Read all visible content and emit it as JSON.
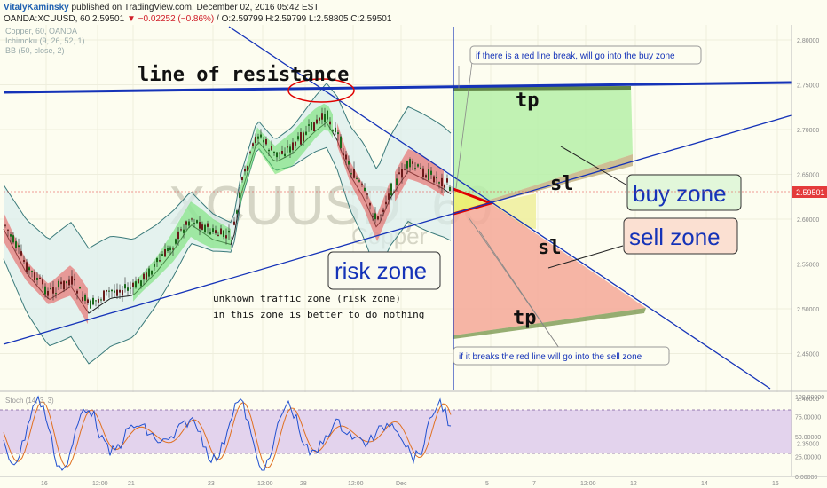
{
  "header": {
    "author": "VitalyKaminsky",
    "published": "published on TradingView.com, December 02, 2016 05:42 EST",
    "symbol": "OANDA:XCUUSD, 60",
    "last": "2.59501",
    "change": "▼ −0.02252 (−0.86%)",
    "ohlc": "/ O:2.59799 H:2.59799 L:2.58805 C:2.59501"
  },
  "legend": {
    "l1": "Copper, 60, OANDA",
    "l2": "Ichimoku (9, 26, 52, 1)",
    "l3": "BB (50, close, 2)",
    "stoch": "Stoch (14, 3, 3)"
  },
  "watermark": {
    "big": "XCUUSD, 60",
    "small": "Copper"
  },
  "annotations": {
    "resistance": "line of resistance",
    "buy_note": "if there is a red line break, will go into the buy zone",
    "sell_note": "if it breaks the red line will go into the sell zone",
    "tp_top": "tp",
    "tp_bottom": "tp",
    "sl_top": "sl",
    "sl_bottom": "sl",
    "buy_zone": "buy  zone",
    "sell_zone": "sell  zone",
    "risk_zone": "risk zone",
    "traffic1": "unknown traffic zone (risk zone)",
    "traffic2": "in this zone is better to do nothing"
  },
  "price_label": "2.59501",
  "chart_data": {
    "type": "candlestick",
    "title": "OANDA:XCUUSD, 60",
    "y_ticks": [
      "2.80000",
      "2.75000",
      "2.70000",
      "2.65000",
      "2.60000",
      "2.55000",
      "2.50000",
      "2.45000",
      "2.40000",
      "2.35000"
    ],
    "x_ticks": [
      "16",
      "12:00",
      "21",
      "23",
      "12:00",
      "28",
      "12:00",
      "Dec",
      "5",
      "7",
      "12:00",
      "12",
      "14",
      "16"
    ],
    "stoch_ticks": [
      "100.00000",
      "75.00000",
      "50.00000",
      "25.00000",
      "0.00000"
    ],
    "current_price": 2.59501,
    "ylim": [
      2.33,
      2.82
    ],
    "stoch_levels": [
      80,
      20
    ]
  },
  "colors": {
    "background": "#fdfdf0",
    "trendline": "#1533b8",
    "bull_cloud": "#66e066",
    "bear_cloud": "#e85050",
    "buy_fill": "#b6f0a8",
    "sell_fill": "#f4a898",
    "stoch_band": "#d9c3ea"
  }
}
